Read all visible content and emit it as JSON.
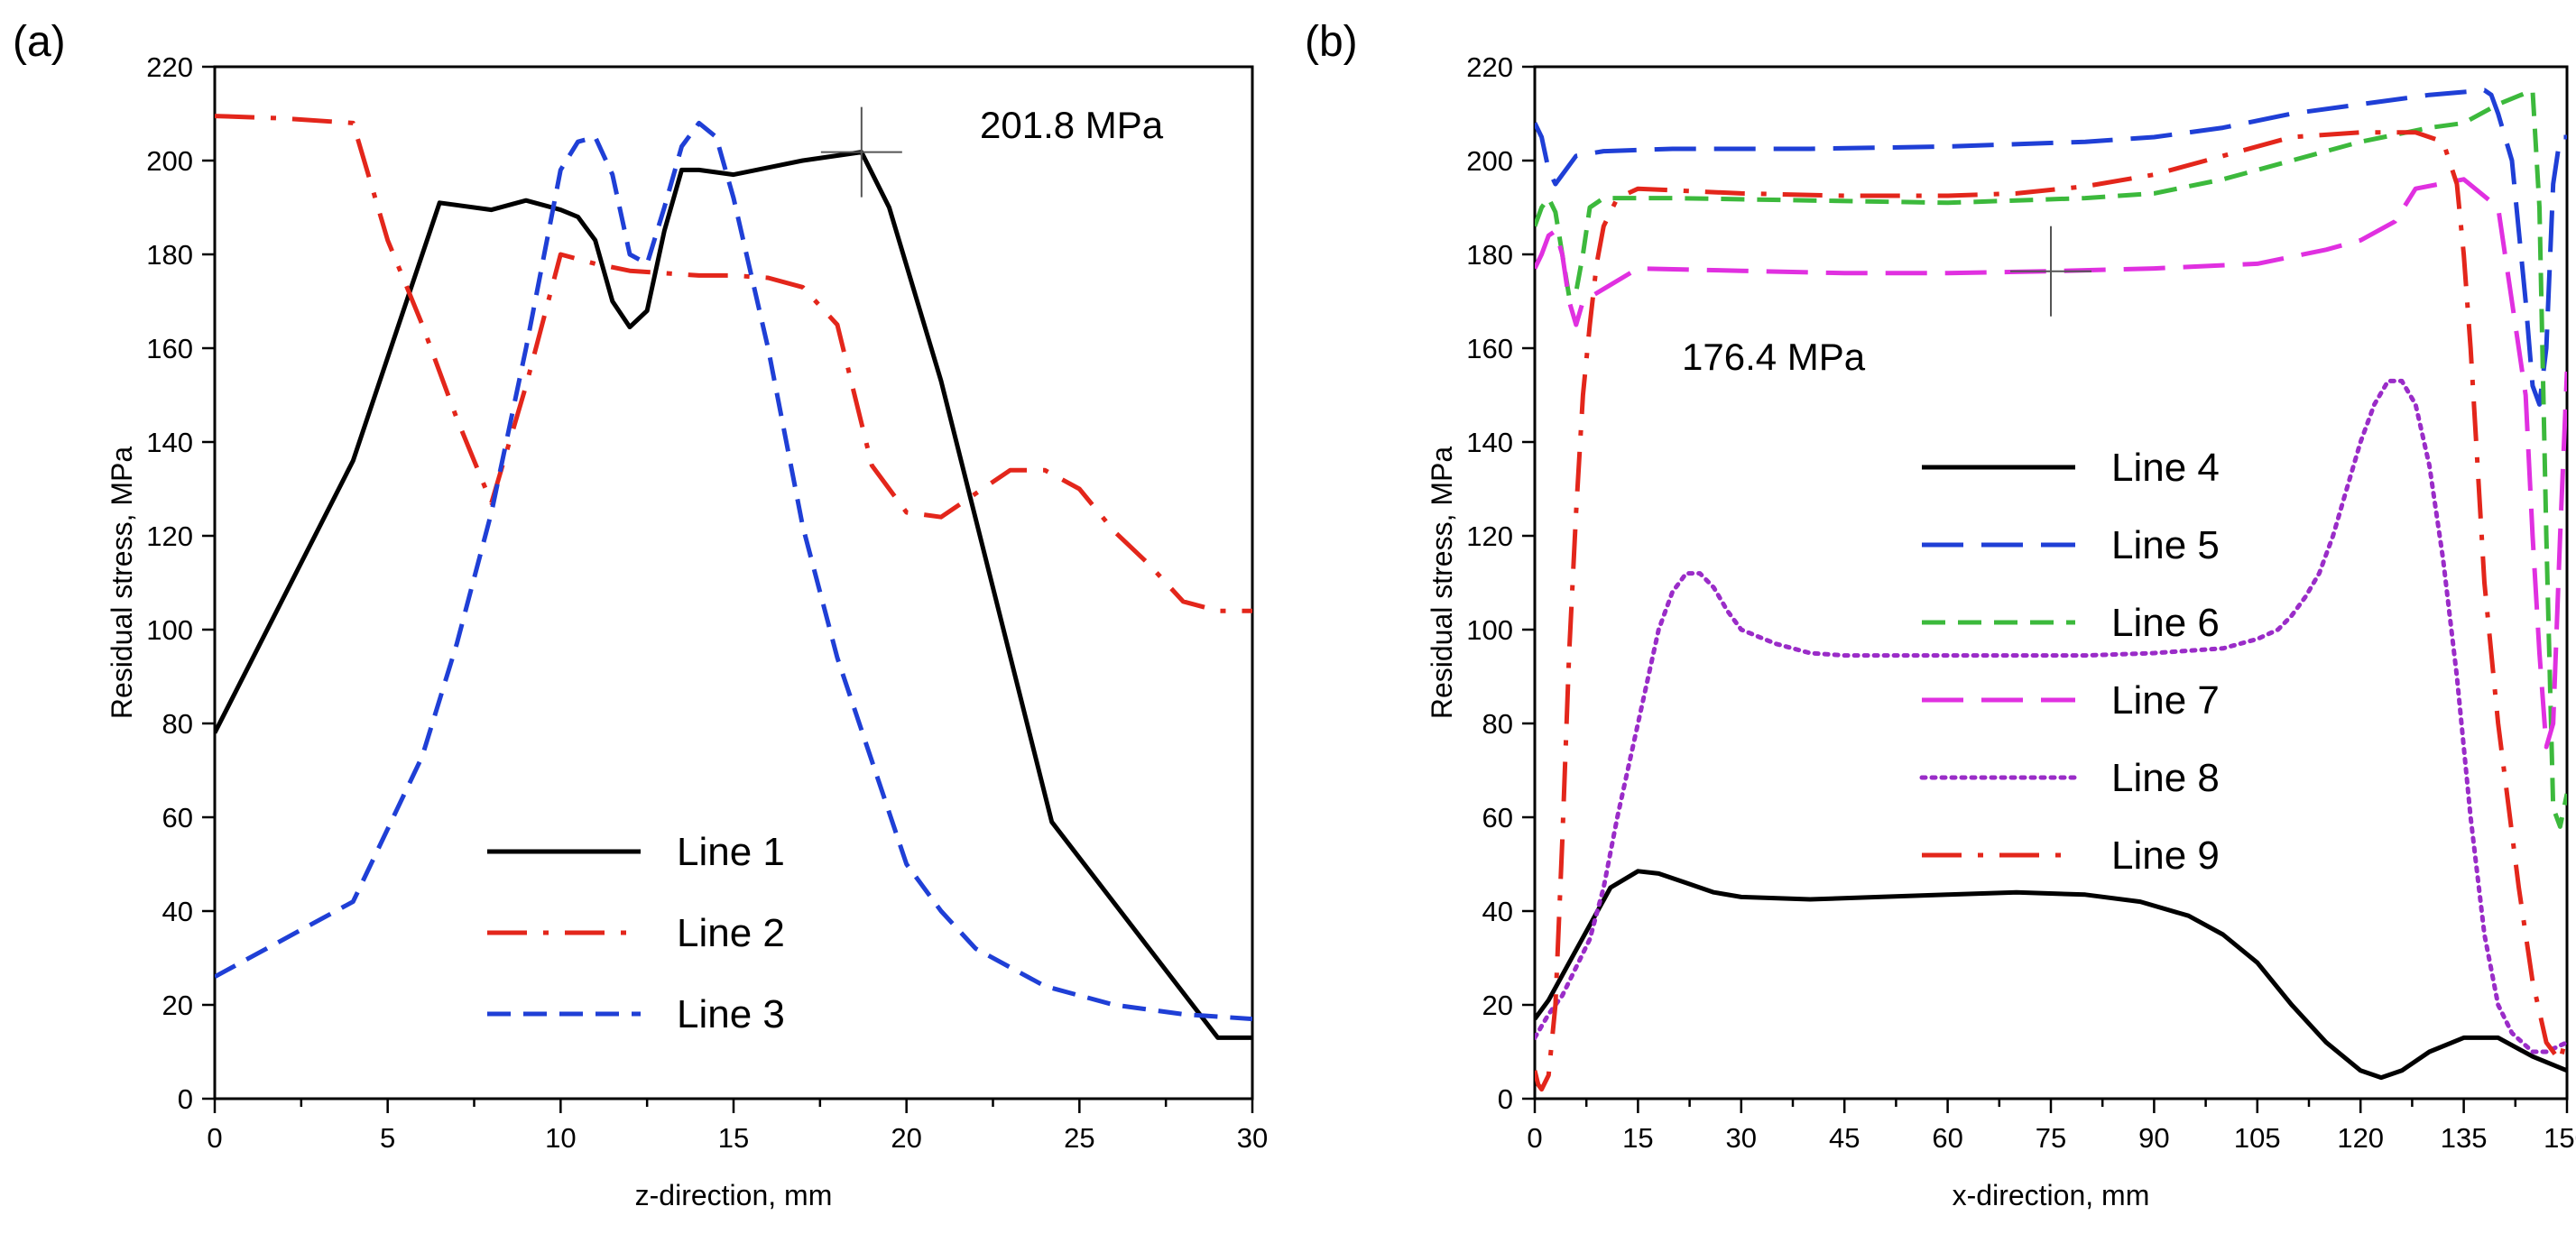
{
  "chart_data": [
    {
      "type": "line",
      "panel_label": "(a)",
      "xlabel": "z-direction, mm",
      "ylabel": "Residual stress, MPa",
      "xlim": [
        0,
        30
      ],
      "ylim": [
        0,
        220
      ],
      "xticks": [
        0,
        5,
        10,
        15,
        20,
        25,
        30
      ],
      "yticks": [
        0,
        20,
        40,
        60,
        80,
        100,
        120,
        140,
        160,
        180,
        200,
        220
      ],
      "grid": false,
      "legend_position": "bottom-center",
      "annotation": {
        "text": "201.8 MPa",
        "point": [
          18.7,
          201.8
        ]
      },
      "series": [
        {
          "name": "Line 1",
          "color": "#000000",
          "style": "solid",
          "x": [
            0,
            4,
            6.5,
            8,
            9,
            10,
            10.5,
            11,
            11.5,
            12,
            12.5,
            13,
            13.5,
            14,
            15,
            16,
            17,
            18.7,
            19.5,
            21,
            24.2,
            29,
            30
          ],
          "y": [
            78,
            136,
            191,
            189.5,
            191.5,
            189.5,
            188,
            183,
            170,
            164.5,
            168,
            185,
            198,
            198,
            197,
            198.5,
            200,
            201.8,
            190,
            153,
            59,
            13,
            13
          ]
        },
        {
          "name": "Line 2",
          "color": "#e3261b",
          "style": "dashdot",
          "x": [
            0,
            2,
            4,
            5,
            6,
            7,
            8,
            9,
            10,
            11,
            12,
            13,
            14,
            15,
            16,
            17,
            18,
            19,
            20,
            21,
            22,
            23,
            24,
            25,
            26,
            27,
            28,
            29,
            30
          ],
          "y": [
            209.5,
            209,
            208,
            183,
            165,
            145,
            127,
            152,
            180,
            178,
            176.5,
            176,
            175.5,
            175.5,
            175,
            173,
            165,
            135,
            125,
            124,
            129,
            134,
            134,
            130,
            121,
            114,
            106,
            104,
            104
          ]
        },
        {
          "name": "Line 3",
          "color": "#1f3fd6",
          "style": "dashed",
          "x": [
            0,
            4,
            6,
            7,
            8,
            9,
            10,
            10.5,
            11,
            11.5,
            12,
            12.5,
            13,
            13.5,
            14,
            14.5,
            15,
            16,
            17,
            18,
            19,
            20,
            21,
            22,
            24,
            26,
            28,
            30
          ],
          "y": [
            26,
            42,
            73,
            97,
            125,
            160,
            198,
            204,
            205,
            197,
            180,
            178,
            190,
            203,
            208,
            205,
            192,
            160,
            122,
            94,
            72,
            50,
            40,
            32,
            24,
            20,
            18,
            17
          ]
        }
      ]
    },
    {
      "type": "line",
      "panel_label": "(b)",
      "xlabel": "x-direction, mm",
      "ylabel": "Residual stress, MPa",
      "xlim": [
        0,
        150
      ],
      "ylim": [
        0,
        220
      ],
      "xticks": [
        0,
        15,
        30,
        45,
        60,
        75,
        90,
        105,
        120,
        135,
        150
      ],
      "yticks": [
        0,
        20,
        40,
        60,
        80,
        100,
        120,
        140,
        160,
        180,
        200,
        220
      ],
      "grid": false,
      "legend_position": "center",
      "annotation": {
        "text": "176.4 MPa",
        "point": [
          75,
          176.4
        ]
      },
      "series": [
        {
          "name": "Line 4",
          "color": "#000000",
          "style": "solid",
          "x": [
            0,
            2,
            5,
            8,
            11,
            15,
            18,
            22,
            26,
            30,
            40,
            50,
            60,
            70,
            80,
            88,
            95,
            100,
            105,
            110,
            115,
            120,
            123,
            126,
            130,
            135,
            140,
            145,
            150
          ],
          "y": [
            17,
            21,
            29,
            37,
            45,
            48.5,
            48,
            46,
            44,
            43,
            42.5,
            43,
            43.5,
            44,
            43.5,
            42,
            39,
            35,
            29,
            20,
            12,
            6,
            4.5,
            6,
            10,
            13,
            13,
            9,
            6
          ]
        },
        {
          "name": "Line 5",
          "color": "#1f3fd6",
          "style": "longdash",
          "x": [
            0,
            1,
            2,
            3,
            4,
            6,
            10,
            20,
            40,
            60,
            80,
            90,
            100,
            110,
            120,
            130,
            138,
            139,
            140,
            142,
            144,
            145,
            146,
            147,
            148,
            149,
            150
          ],
          "y": [
            208,
            205,
            198,
            195,
            197,
            201,
            202,
            202.5,
            202.5,
            203,
            204,
            205,
            207,
            210,
            212,
            214,
            215,
            214,
            210,
            200,
            170,
            152,
            148,
            160,
            195,
            205,
            205
          ]
        },
        {
          "name": "Line 6",
          "color": "#3cb93c",
          "style": "dashed",
          "x": [
            0,
            1,
            2,
            3,
            4,
            5,
            6,
            7,
            8,
            10,
            20,
            40,
            60,
            80,
            90,
            100,
            110,
            120,
            130,
            135,
            140,
            145,
            146,
            147,
            148,
            149,
            150
          ],
          "y": [
            186,
            190,
            192,
            189,
            180,
            171,
            172,
            180,
            190,
            192,
            192,
            191.5,
            191,
            192,
            193,
            196,
            200,
            204,
            207,
            208,
            212,
            215,
            190,
            120,
            62,
            58,
            65
          ]
        },
        {
          "name": "Line 7",
          "color": "#e030e0",
          "style": "longdash",
          "x": [
            0,
            1,
            2,
            3,
            4,
            5,
            6,
            7,
            15,
            30,
            45,
            60,
            75,
            90,
            105,
            115,
            120,
            125,
            128,
            135,
            140,
            144,
            145,
            146,
            147,
            148,
            149,
            150
          ],
          "y": [
            177,
            180,
            184,
            185,
            180,
            170,
            165,
            170,
            177,
            176.5,
            176,
            176,
            176.4,
            177,
            178,
            181,
            183,
            187,
            194,
            196,
            190,
            150,
            120,
            95,
            75,
            80,
            120,
            155
          ]
        },
        {
          "name": "Line 8",
          "color": "#9a2cc8",
          "style": "dotted",
          "x": [
            0,
            2,
            4,
            6,
            8,
            10,
            12,
            15,
            18,
            20,
            22,
            24,
            26,
            28,
            30,
            35,
            40,
            45,
            50,
            60,
            70,
            80,
            90,
            100,
            105,
            108,
            110,
            112,
            114,
            116,
            118,
            120,
            122,
            124,
            126,
            128,
            130,
            132,
            134,
            136,
            138,
            140,
            142,
            145,
            147,
            150
          ],
          "y": [
            13,
            18,
            22,
            28,
            34,
            45,
            60,
            80,
            100,
            108,
            112,
            112,
            109,
            104,
            100,
            97,
            95,
            94.5,
            94.5,
            94.5,
            94.5,
            94.5,
            95,
            96,
            98,
            100,
            103,
            107,
            112,
            120,
            130,
            140,
            148,
            153,
            153,
            148,
            135,
            115,
            90,
            60,
            35,
            20,
            14,
            10,
            10,
            12
          ]
        },
        {
          "name": "Line 9",
          "color": "#e3261b",
          "style": "dashdot",
          "x": [
            0,
            0.5,
            1,
            2,
            3,
            4,
            5,
            6,
            7,
            8,
            9,
            10,
            12,
            15,
            30,
            45,
            60,
            70,
            80,
            90,
            100,
            110,
            120,
            128,
            132,
            134,
            135,
            136,
            137,
            138,
            140,
            143,
            145,
            147,
            149,
            150
          ],
          "y": [
            6,
            3,
            2,
            5,
            20,
            55,
            95,
            125,
            150,
            165,
            178,
            186,
            192,
            194,
            193,
            192.5,
            192.5,
            193,
            194.5,
            197,
            201,
            205,
            206,
            206,
            204,
            195,
            180,
            160,
            135,
            110,
            80,
            45,
            25,
            12,
            8,
            14
          ]
        }
      ]
    }
  ]
}
